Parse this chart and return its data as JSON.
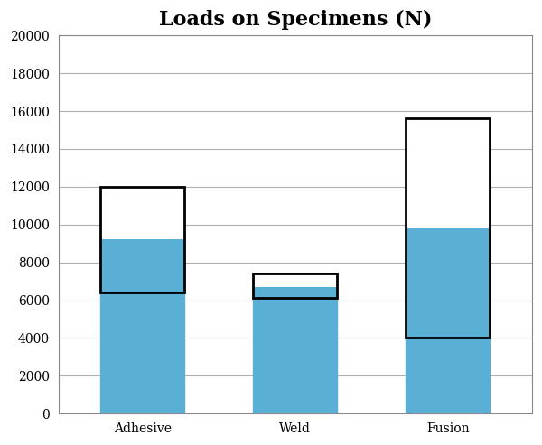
{
  "title": "Loads on Specimens (N)",
  "categories": [
    "Adhesive",
    "Weld",
    "Fusion"
  ],
  "means": [
    9200,
    6700,
    9800
  ],
  "std_low": [
    6400,
    6100,
    4000
  ],
  "std_high": [
    12000,
    7400,
    15600
  ],
  "bar_color": "#5aafd4",
  "box_edge_color": "#000000",
  "box_face_color": "#ffffff",
  "ylim": [
    0,
    20000
  ],
  "yticks": [
    0,
    2000,
    4000,
    6000,
    8000,
    10000,
    12000,
    14000,
    16000,
    18000,
    20000
  ],
  "grid_color": "#b0b0b0",
  "background_color": "#ffffff",
  "title_fontsize": 16,
  "tick_fontsize": 10,
  "bar_width": 0.55,
  "fig_width": 6.0,
  "fig_height": 4.93,
  "dpi": 100
}
